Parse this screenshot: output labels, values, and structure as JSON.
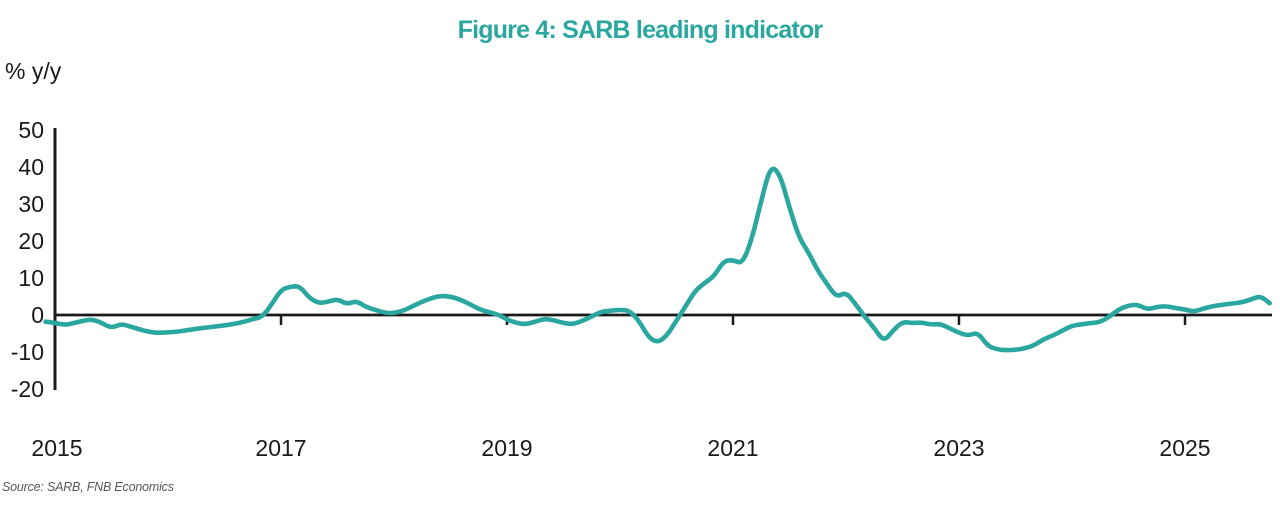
{
  "title": "Figure 4: SARB leading indicator",
  "y_axis_unit": "% y/y",
  "source": "Source: SARB, FNB Economics",
  "colors": {
    "accent_teal": "#2AA79E",
    "axis_black": "#1A1A1A",
    "source_gray": "#575757"
  },
  "chart_data": {
    "type": "line",
    "title": "Figure 4: SARB leading indicator",
    "ylabel": "% y/y",
    "xlabel": "",
    "grid": false,
    "legend": false,
    "line_color": "#2AA79E",
    "ylim": [
      -20,
      50
    ],
    "xlim": [
      2015,
      2025.85
    ],
    "yticks": [
      50,
      40,
      30,
      20,
      10,
      0,
      -10,
      -20
    ],
    "xticks": [
      2015,
      2017,
      2019,
      2021,
      2023,
      2025
    ],
    "source_note": "Source: SARB, FNB Economics",
    "series": [
      {
        "name": "SARB leading indicator (% y/y)",
        "frequency": "monthly",
        "start_year_decimal": 2014.91667,
        "step_years": 0.0833333,
        "values": [
          -1.8,
          -2.1,
          -2.7,
          -2.2,
          -1.5,
          -1.2,
          -2.2,
          -3.5,
          -2.4,
          -3.1,
          -3.9,
          -4.6,
          -4.8,
          -4.7,
          -4.5,
          -4.1,
          -3.7,
          -3.4,
          -3.1,
          -2.8,
          -2.4,
          -1.9,
          -1.1,
          -0.5,
          2.8,
          6.8,
          7.7,
          7.8,
          4.6,
          3.2,
          3.6,
          4.3,
          2.9,
          3.8,
          2.2,
          1.4,
          0.6,
          0.5,
          1.2,
          2.4,
          3.6,
          4.6,
          5.2,
          5.0,
          4.2,
          3.0,
          1.6,
          0.8,
          0.2,
          -1.2,
          -2.2,
          -2.5,
          -1.8,
          -1.0,
          -1.4,
          -2.2,
          -2.5,
          -1.6,
          -0.4,
          0.9,
          1.2,
          1.4,
          1.2,
          -1.5,
          -6.0,
          -7.5,
          -5.5,
          -1.5,
          2.5,
          6.6,
          8.7,
          10.5,
          14.6,
          14.9,
          13.8,
          20.5,
          31.0,
          40.5,
          38.0,
          29.0,
          21.0,
          17.0,
          12.0,
          8.3,
          4.8,
          6.2,
          3.0,
          -0.5,
          -3.5,
          -7.2,
          -4.2,
          -1.8,
          -2.2,
          -2.0,
          -2.6,
          -2.4,
          -3.6,
          -4.8,
          -5.6,
          -4.7,
          -8.3,
          -9.3,
          -9.5,
          -9.4,
          -9.0,
          -8.2,
          -6.5,
          -5.5,
          -4.2,
          -2.9,
          -2.5,
          -2.2,
          -1.9,
          -0.4,
          1.6,
          2.6,
          2.8,
          1.5,
          2.2,
          2.4,
          1.9,
          1.5,
          0.9,
          1.8,
          2.4,
          2.8,
          3.1,
          3.4,
          4.2,
          5.2,
          3.2
        ]
      }
    ]
  }
}
